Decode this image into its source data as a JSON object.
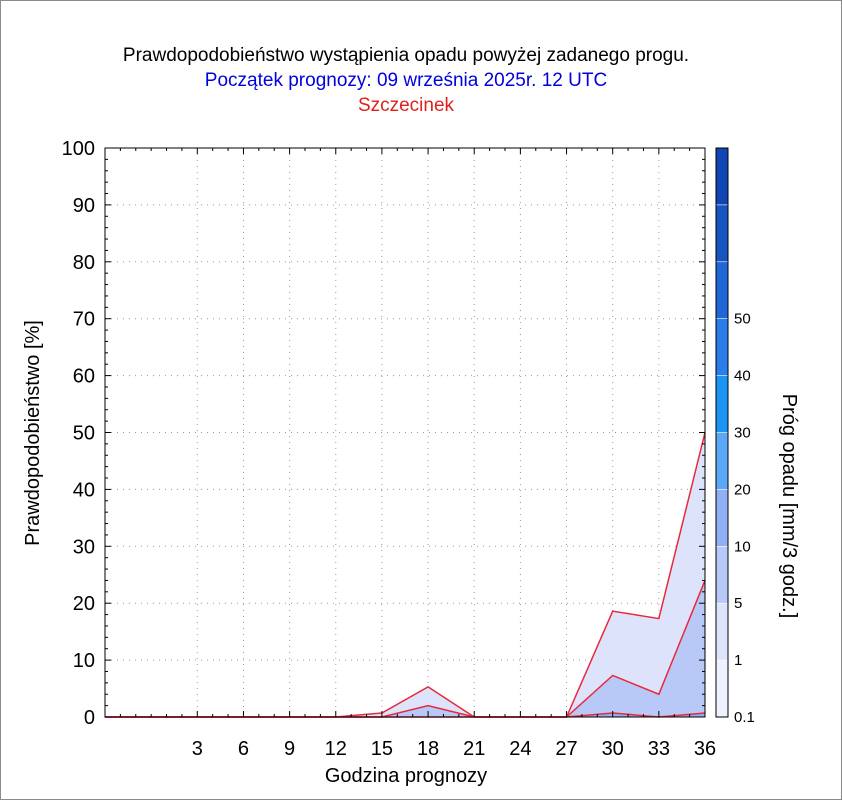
{
  "chart_data": {
    "type": "area",
    "title": "Prawdopodobieństwo wystąpienia opadu powyżej zadanego progu.",
    "subtitle": "Początek prognozy: 09 września 2025r. 12 UTC",
    "location": "Szczecinek",
    "xlabel": "Godzina prognozy",
    "ylabel": "Prawdopodobieństwo [%]",
    "colorbar_label": "Próg opadu [mm/3 godz.]",
    "xlim": [
      -3,
      36
    ],
    "ylim": [
      0,
      100
    ],
    "x_ticks": [
      3,
      6,
      9,
      12,
      15,
      18,
      21,
      24,
      27,
      30,
      33,
      36
    ],
    "y_ticks": [
      0,
      10,
      20,
      30,
      40,
      50,
      60,
      70,
      80,
      90,
      100
    ],
    "grid": true,
    "x": [
      -3,
      0,
      3,
      6,
      9,
      12,
      15,
      18,
      21,
      24,
      27,
      30,
      33,
      36
    ],
    "series": [
      {
        "name": "0.1",
        "color": "#dde3fb",
        "values": [
          0,
          0,
          0,
          0,
          0,
          0,
          0.7,
          5.3,
          0,
          0,
          0,
          18.6,
          17.3,
          50
        ]
      },
      {
        "name": "1",
        "color": "#b8c9f8",
        "values": [
          0,
          0,
          0,
          0,
          0,
          0,
          0,
          2.0,
          0,
          0,
          0,
          7.3,
          4.0,
          24
        ]
      },
      {
        "name": "5",
        "color": "#8fb0f3",
        "values": [
          0,
          0,
          0,
          0,
          0,
          0,
          0,
          0,
          0,
          0,
          0,
          0.7,
          0,
          0.7
        ]
      }
    ],
    "outline_color": "#e8293a",
    "colorbar": {
      "labels": [
        "0.1",
        "1",
        "5",
        "10",
        "20",
        "30",
        "40",
        "50"
      ],
      "colors": [
        "#eef1fe",
        "#dde3fb",
        "#b8c9f8",
        "#8fb0f3",
        "#5aa8f6",
        "#1a94f5",
        "#2b7de9",
        "#1f66d6",
        "#1855c2",
        "#0f46b4"
      ]
    },
    "colors": {
      "title": "#000000",
      "subtitle": "#0000e0",
      "location": "#e0201c"
    }
  }
}
